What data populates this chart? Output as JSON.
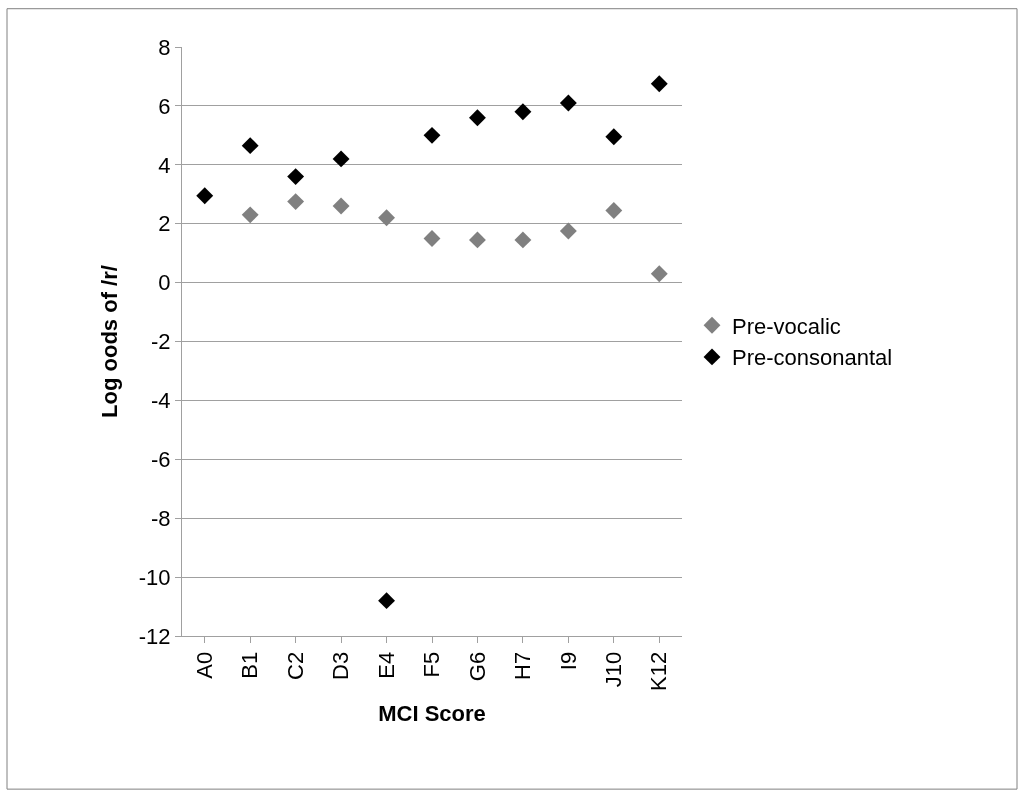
{
  "chart_data": {
    "type": "scatter",
    "xlabel": "MCI Score",
    "ylabel": "Log oods of /r/",
    "categories": [
      "A0",
      "B1",
      "C2",
      "D3",
      "E4",
      "F5",
      "G6",
      "H7",
      "I9",
      "J10",
      "K12"
    ],
    "series": [
      {
        "name": "Pre-vocalic",
        "color": "#808080",
        "values": [
          null,
          2.3,
          2.75,
          2.6,
          2.2,
          1.5,
          1.45,
          1.45,
          1.75,
          2.45,
          0.3
        ]
      },
      {
        "name": "Pre-consonantal",
        "color": "#000000",
        "values": [
          2.95,
          4.65,
          3.6,
          4.2,
          -10.8,
          5.0,
          5.6,
          5.8,
          6.1,
          4.95,
          6.75
        ]
      }
    ],
    "ylim": [
      -12,
      8
    ],
    "yticks": [
      -12,
      -10,
      -8,
      -6,
      -4,
      -2,
      0,
      2,
      4,
      6,
      8
    ],
    "grid": "y",
    "legend": "right",
    "marker": "diamond"
  }
}
